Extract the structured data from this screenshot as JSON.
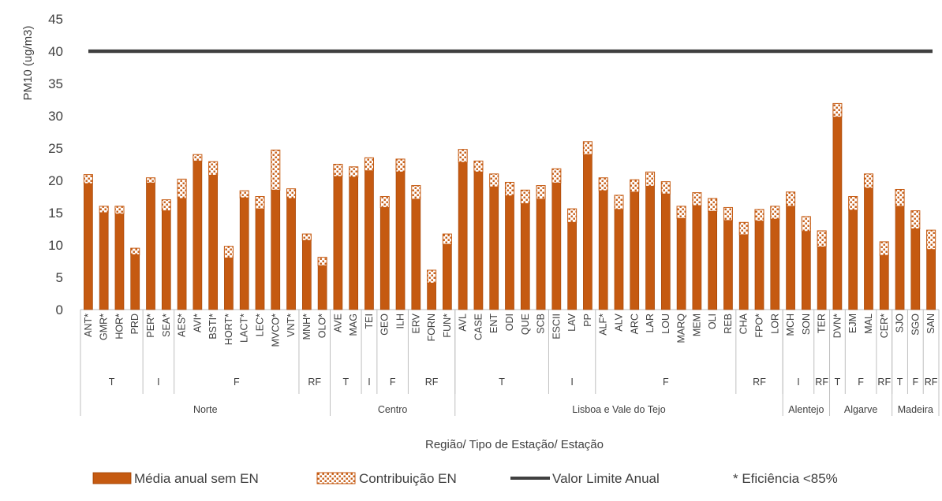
{
  "chart_data": {
    "type": "bar",
    "stacked": true,
    "ylabel": "PM10 (ug/m3)",
    "xlabel": "Região/ Tipo de Estação/ Estação",
    "ylim": [
      0,
      45
    ],
    "yticks": [
      0,
      5,
      10,
      15,
      20,
      25,
      30,
      35,
      40,
      45
    ],
    "grid": false,
    "legend_position": "bottom",
    "series": [
      {
        "name": "Média anual sem EN",
        "color": "#C55A11",
        "values": [
          19.5,
          15.0,
          14.8,
          8.5,
          19.6,
          15.3,
          17.2,
          23.0,
          20.8,
          8.0,
          17.3,
          15.6,
          18.5,
          17.2,
          10.7,
          6.8,
          20.6,
          20.5,
          21.5,
          15.8,
          21.3,
          17.1,
          4.1,
          10.1,
          22.8,
          21.3,
          19.0,
          17.6,
          16.4,
          17.1,
          19.6,
          13.5,
          24.0,
          18.4,
          15.5,
          18.2,
          19.1,
          17.9,
          14.1,
          16.1,
          15.2,
          13.8,
          11.6,
          13.7,
          14.0,
          16.0,
          12.1,
          9.7,
          29.8,
          15.4,
          18.8,
          8.4,
          16.0,
          12.5,
          9.3
        ]
      },
      {
        "name": "Contribuição EN",
        "pattern": "dotted",
        "values": [
          1.4,
          1.0,
          1.2,
          1.0,
          0.8,
          1.7,
          3.0,
          1.0,
          2.1,
          1.8,
          1.1,
          1.9,
          6.2,
          1.5,
          1.0,
          1.3,
          1.9,
          1.6,
          2.0,
          1.7,
          2.0,
          2.1,
          2.0,
          1.6,
          2.0,
          1.7,
          2.0,
          2.1,
          2.1,
          2.1,
          2.2,
          2.1,
          2.0,
          2.0,
          2.2,
          1.9,
          2.2,
          1.9,
          1.9,
          2.0,
          2.0,
          2.0,
          1.9,
          1.8,
          2.0,
          2.2,
          2.3,
          2.5,
          2.1,
          2.1,
          2.2,
          2.1,
          2.6,
          2.8,
          3.0
        ]
      },
      {
        "name": "Valor Limite Anual",
        "type": "line",
        "color": "#404040",
        "value": 40
      }
    ],
    "categories": [
      "ANT*",
      "GMR*",
      "HOR*",
      "PRD",
      "PER*",
      "SEA*",
      "AES*",
      "AVI*",
      "BSTI*",
      "HORT*",
      "LACT*",
      "LEC*",
      "MVCO*",
      "VNT*",
      "MNH*",
      "OLO*",
      "AVE",
      "MAG",
      "TEI",
      "GEO",
      "ILH",
      "ERV",
      "FORN",
      "FUN*",
      "AVL",
      "CASE",
      "ENT",
      "ODI",
      "QUE",
      "SCB",
      "ESCII",
      "LAV",
      "PP",
      "ALF*",
      "ALV",
      "ARC",
      "LAR",
      "LOU",
      "MARQ",
      "MEM",
      "OLI",
      "REB",
      "CHA",
      "FPO*",
      "LOR",
      "MCH",
      "SON",
      "TER",
      "DVN*",
      "EJM",
      "MAL",
      "CER*",
      "SJO",
      "SGO",
      "SAN"
    ],
    "station_types": [
      {
        "label": "T",
        "count": 4
      },
      {
        "label": "I",
        "count": 2
      },
      {
        "label": "F",
        "count": 8
      },
      {
        "label": "RF",
        "count": 2
      },
      {
        "label": "T",
        "count": 2
      },
      {
        "label": "I",
        "count": 1
      },
      {
        "label": "F",
        "count": 2
      },
      {
        "label": "RF",
        "count": 3
      },
      {
        "label": "T",
        "count": 6
      },
      {
        "label": "I",
        "count": 3
      },
      {
        "label": "F",
        "count": 9
      },
      {
        "label": "RF",
        "count": 3
      },
      {
        "label": "I",
        "count": 2
      },
      {
        "label": "RF",
        "count": 1
      },
      {
        "label": "T",
        "count": 1
      },
      {
        "label": "F",
        "count": 2
      },
      {
        "label": "RF",
        "count": 1
      },
      {
        "label": "T",
        "count": 1
      },
      {
        "label": "F",
        "count": 1
      },
      {
        "label": "RF",
        "count": 1
      }
    ],
    "regions": [
      {
        "label": "Norte",
        "count": 16
      },
      {
        "label": "Centro",
        "count": 8
      },
      {
        "label": "Lisboa e Vale do Tejo",
        "count": 21
      },
      {
        "label": "Alentejo",
        "count": 3
      },
      {
        "label": "Algarve",
        "count": 4
      },
      {
        "label": "Madeira",
        "count": 3
      }
    ],
    "legend_note": "* Eficiência <85%"
  }
}
